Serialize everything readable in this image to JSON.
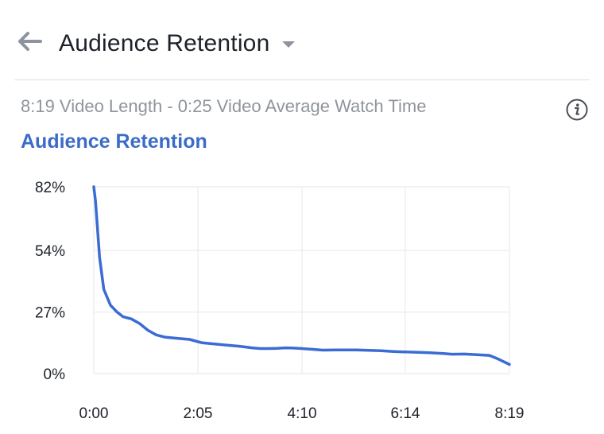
{
  "header": {
    "title": "Audience Retention",
    "back_icon": "arrow-left-icon",
    "dropdown_icon": "caret-down-icon"
  },
  "summary": {
    "text": "8:19 Video Length - 0:25 Video Average Watch Time",
    "info_icon": "info-icon"
  },
  "section": {
    "title": "Audience Retention"
  },
  "colors": {
    "line": "#3b6bd3",
    "accent": "#3b6bc8",
    "grid": "#e9ebee"
  },
  "chart_data": {
    "type": "line",
    "title": "Audience Retention",
    "xlabel": "",
    "ylabel": "",
    "x_unit": "seconds",
    "xlim": [
      0,
      499
    ],
    "ylim": [
      0,
      82
    ],
    "x_ticks": [
      {
        "label": "0:00",
        "value": 0
      },
      {
        "label": "2:05",
        "value": 125
      },
      {
        "label": "4:10",
        "value": 250
      },
      {
        "label": "6:14",
        "value": 374
      },
      {
        "label": "8:19",
        "value": 499
      }
    ],
    "y_ticks": [
      {
        "label": "82%",
        "value": 82
      },
      {
        "label": "54%",
        "value": 54
      },
      {
        "label": "27%",
        "value": 27
      },
      {
        "label": "0%",
        "value": 0
      }
    ],
    "grid": true,
    "series": [
      {
        "x": [
          0,
          2,
          7,
          12,
          20,
          28,
          35,
          45,
          55,
          65,
          75,
          85,
          100,
          115,
          130,
          145,
          160,
          175,
          190,
          200,
          210,
          220,
          230,
          240,
          250,
          260,
          275,
          290,
          300,
          315,
          330,
          345,
          360,
          375,
          390,
          405,
          420,
          430,
          445,
          460,
          475,
          485,
          499
        ],
        "y": [
          82,
          76,
          51,
          37,
          30,
          27,
          25,
          24,
          22,
          19,
          17,
          16,
          15.5,
          15,
          13.5,
          13,
          12.5,
          12,
          11.3,
          11,
          11,
          11.1,
          11.3,
          11.2,
          11,
          10.7,
          10.3,
          10.4,
          10.4,
          10.4,
          10.2,
          10,
          9.7,
          9.5,
          9.3,
          9.1,
          8.8,
          8.5,
          8.6,
          8.3,
          8.0,
          6.5,
          4
        ]
      }
    ]
  }
}
